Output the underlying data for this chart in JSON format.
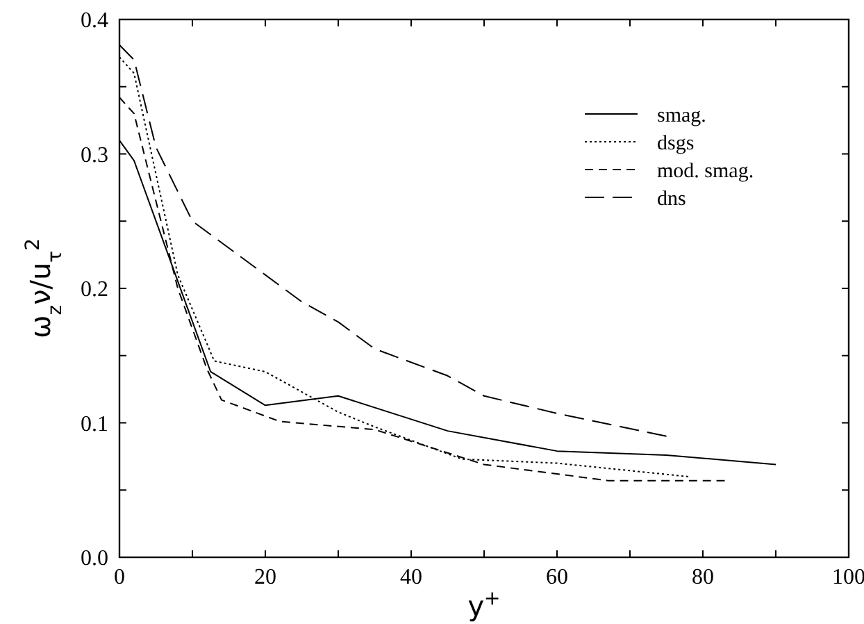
{
  "chart_data": {
    "type": "line",
    "xlabel": "y$^{+}$",
    "ylabel": "ω$_{z}$ν/u$_{τ}$$^{2}$",
    "xlim": [
      0,
      100
    ],
    "ylim": [
      0,
      0.4
    ],
    "xticks": [
      0,
      {
        "value": 10,
        "label": null
      },
      20,
      {
        "value": 30,
        "label": null
      },
      40,
      {
        "value": 50,
        "label": null
      },
      60,
      {
        "value": 70,
        "label": null
      },
      80,
      {
        "value": 90,
        "label": null
      },
      100
    ],
    "yticks": [
      {
        "value": 0,
        "label": "0.0"
      },
      {
        "value": 0.05,
        "label": null
      },
      0.1,
      {
        "value": 0.15,
        "label": null
      },
      0.2,
      {
        "value": 0.25,
        "label": null
      },
      0.3,
      {
        "value": 0.35,
        "label": null
      },
      0.4
    ],
    "grid": false,
    "legend": "top right",
    "marker": "none",
    "series": [
      {
        "name": "smag.",
        "color": "#000000",
        "line_style": "solid",
        "x": [
          0,
          2,
          12.5,
          20,
          30,
          45,
          60,
          75,
          90
        ],
        "values": [
          0.31,
          0.295,
          0.138,
          0.113,
          0.12,
          0.094,
          0.079,
          0.076,
          0.069
        ]
      },
      {
        "name": "dsgs",
        "color": "#000000",
        "line_style": "dotted",
        "x": [
          0,
          2,
          8,
          13,
          20,
          30,
          35,
          47,
          60,
          78
        ],
        "values": [
          0.372,
          0.36,
          0.21,
          0.146,
          0.138,
          0.108,
          0.097,
          0.073,
          0.07,
          0.06
        ]
      },
      {
        "name": "mod. smag.",
        "color": "#000000",
        "line_style": "dashed",
        "x": [
          0,
          2,
          8,
          12,
          14,
          22,
          35,
          50,
          60,
          67,
          83
        ],
        "values": [
          0.342,
          0.33,
          0.2,
          0.14,
          0.117,
          0.101,
          0.095,
          0.069,
          0.062,
          0.057,
          0.057
        ]
      },
      {
        "name": "dns",
        "color": "#000000",
        "line_style": "longdash",
        "x": [
          0,
          2,
          5,
          10,
          20,
          25,
          30,
          35,
          45,
          50,
          60,
          75
        ],
        "values": [
          0.381,
          0.37,
          0.305,
          0.25,
          0.21,
          0.19,
          0.175,
          0.155,
          0.135,
          0.12,
          0.107,
          0.09
        ]
      }
    ]
  }
}
